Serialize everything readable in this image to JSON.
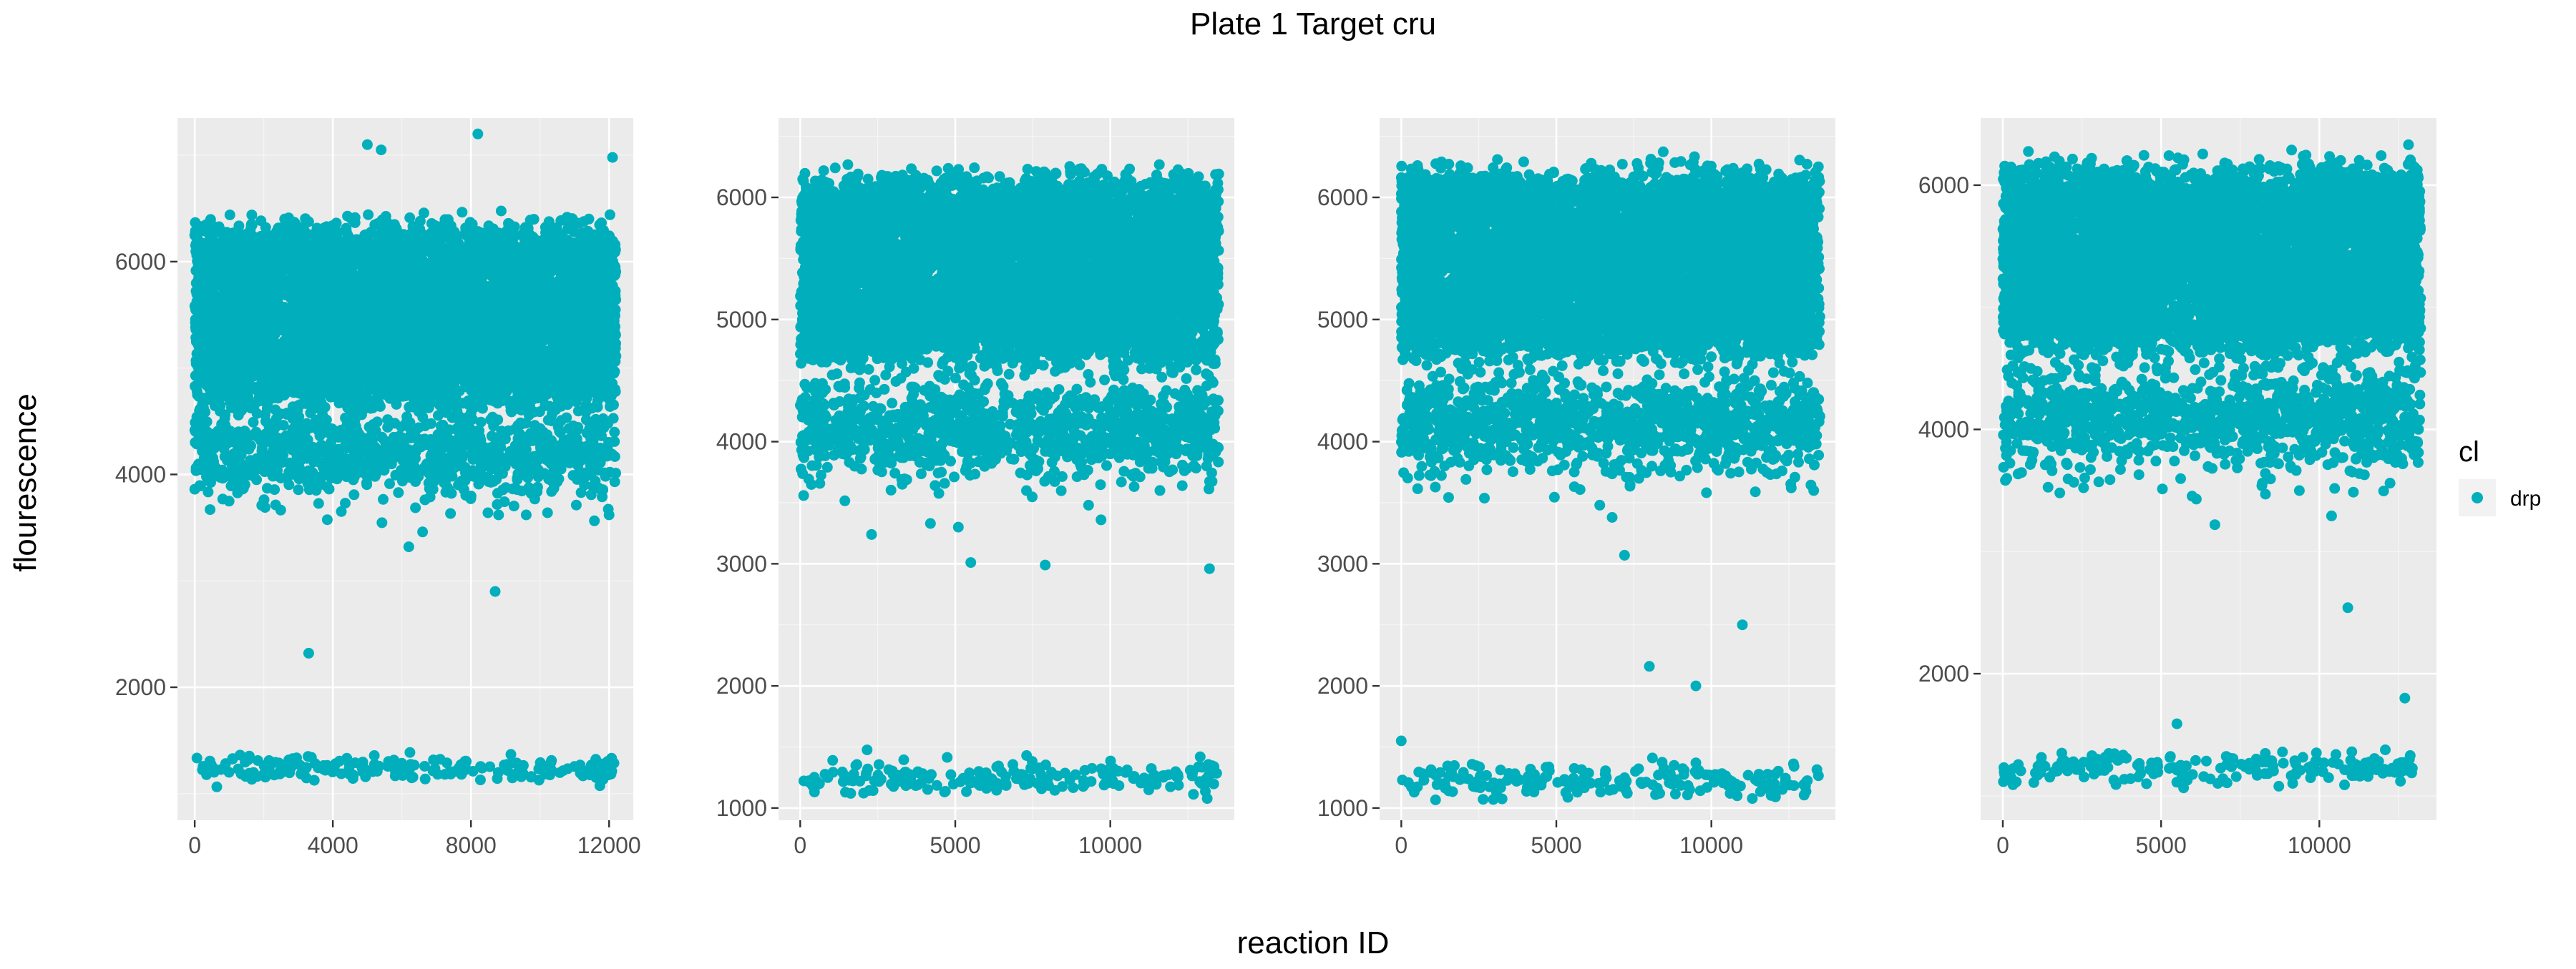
{
  "chart_data": {
    "type": "scatter",
    "title": "Plate 1 Target cru",
    "xlabel": "reaction ID",
    "ylabel": "flourescence",
    "legend": {
      "title": "cl",
      "placement": "right",
      "entries": [
        {
          "label": "drp",
          "color": "#00AFBB"
        }
      ]
    },
    "point_color": "#00AFBB",
    "background_color": "#EBEBEB",
    "grid": true,
    "panels": [
      {
        "xlim": [
          -500,
          12700
        ],
        "ylim": [
          750,
          7350
        ],
        "xticks": [
          0,
          4000,
          8000,
          12000
        ],
        "xtick_labels": [
          "0",
          "4000",
          "8000",
          "12000"
        ],
        "yticks": [
          2000,
          4000,
          6000
        ],
        "ytick_labels": [
          "2000",
          "4000",
          "6000"
        ],
        "n_points": 12200,
        "clusters": [
          {
            "x_range": [
              0,
              12200
            ],
            "y_center": 5500,
            "y_spread": 900,
            "share": 0.82
          },
          {
            "x_range": [
              0,
              12200
            ],
            "y_center": 4200,
            "y_spread": 220,
            "share": 0.15
          }
        ],
        "low_band": {
          "y_center": 1240,
          "y_spread": 90,
          "count": 190
        },
        "outliers": [
          {
            "x": 3300,
            "y": 2320
          },
          {
            "x": 6200,
            "y": 3320
          },
          {
            "x": 6600,
            "y": 3460
          },
          {
            "x": 8700,
            "y": 2900
          },
          {
            "x": 8800,
            "y": 3620
          },
          {
            "x": 9600,
            "y": 3620
          },
          {
            "x": 12000,
            "y": 3620
          },
          {
            "x": 8200,
            "y": 7200
          },
          {
            "x": 5000,
            "y": 7100
          },
          {
            "x": 5400,
            "y": 7050
          },
          {
            "x": 12100,
            "y": 6980
          }
        ]
      },
      {
        "xlim": [
          -700,
          14000
        ],
        "ylim": [
          900,
          6650
        ],
        "xticks": [
          0,
          5000,
          10000
        ],
        "xtick_labels": [
          "0",
          "5000",
          "10000"
        ],
        "yticks": [
          1000,
          2000,
          3000,
          4000,
          5000,
          6000
        ],
        "ytick_labels": [
          "1000",
          "2000",
          "3000",
          "4000",
          "5000",
          "6000"
        ],
        "n_points": 13500,
        "clusters": [
          {
            "x_range": [
              0,
              13500
            ],
            "y_center": 5400,
            "y_spread": 800,
            "share": 0.82
          },
          {
            "x_range": [
              0,
              13500
            ],
            "y_center": 4100,
            "y_spread": 200,
            "share": 0.15
          }
        ],
        "low_band": {
          "y_center": 1240,
          "y_spread": 90,
          "count": 200
        },
        "outliers": [
          {
            "x": 2300,
            "y": 3240
          },
          {
            "x": 4200,
            "y": 3330
          },
          {
            "x": 5100,
            "y": 3300
          },
          {
            "x": 5500,
            "y": 3010
          },
          {
            "x": 7900,
            "y": 2990
          },
          {
            "x": 9700,
            "y": 3360
          },
          {
            "x": 13200,
            "y": 2960
          },
          {
            "x": 9300,
            "y": 3480
          },
          {
            "x": 11600,
            "y": 3600
          },
          {
            "x": 7300,
            "y": 1430
          },
          {
            "x": 12900,
            "y": 1420
          }
        ]
      },
      {
        "xlim": [
          -700,
          14000
        ],
        "ylim": [
          900,
          6650
        ],
        "xticks": [
          0,
          5000,
          10000
        ],
        "xtick_labels": [
          "0",
          "5000",
          "10000"
        ],
        "yticks": [
          1000,
          2000,
          3000,
          4000,
          5000,
          6000
        ],
        "ytick_labels": [
          "1000",
          "2000",
          "3000",
          "4000",
          "5000",
          "6000"
        ],
        "n_points": 13500,
        "clusters": [
          {
            "x_range": [
              0,
              13500
            ],
            "y_center": 5450,
            "y_spread": 800,
            "share": 0.82
          },
          {
            "x_range": [
              0,
              13500
            ],
            "y_center": 4150,
            "y_spread": 200,
            "share": 0.15
          }
        ],
        "low_band": {
          "y_center": 1210,
          "y_spread": 90,
          "count": 200
        },
        "outliers": [
          {
            "x": 0,
            "y": 1550
          },
          {
            "x": 6400,
            "y": 3480
          },
          {
            "x": 6800,
            "y": 3380
          },
          {
            "x": 7200,
            "y": 3070
          },
          {
            "x": 8000,
            "y": 2160
          },
          {
            "x": 9500,
            "y": 2000
          },
          {
            "x": 11000,
            "y": 2500
          },
          {
            "x": 8100,
            "y": 1410
          },
          {
            "x": 9500,
            "y": 1370
          },
          {
            "x": 13300,
            "y": 3600
          }
        ]
      },
      {
        "xlim": [
          -700,
          13700
        ],
        "ylim": [
          800,
          6550
        ],
        "xticks": [
          0,
          5000,
          10000
        ],
        "xtick_labels": [
          "0",
          "5000",
          "10000"
        ],
        "yticks": [
          2000,
          4000,
          6000
        ],
        "ytick_labels": [
          "2000",
          "4000",
          "6000"
        ],
        "n_points": 13200,
        "clusters": [
          {
            "x_range": [
              0,
              13200
            ],
            "y_center": 5400,
            "y_spread": 800,
            "share": 0.82
          },
          {
            "x_range": [
              0,
              13200
            ],
            "y_center": 4100,
            "y_spread": 220,
            "share": 0.15
          }
        ],
        "low_band": {
          "y_center": 1230,
          "y_spread": 90,
          "count": 200
        },
        "outliers": [
          {
            "x": 1800,
            "y": 3480
          },
          {
            "x": 4300,
            "y": 3630
          },
          {
            "x": 6700,
            "y": 3220
          },
          {
            "x": 10900,
            "y": 2540
          },
          {
            "x": 12700,
            "y": 1800
          },
          {
            "x": 5500,
            "y": 1590
          },
          {
            "x": 8200,
            "y": 3560
          },
          {
            "x": 12400,
            "y": 3730
          }
        ]
      }
    ]
  }
}
